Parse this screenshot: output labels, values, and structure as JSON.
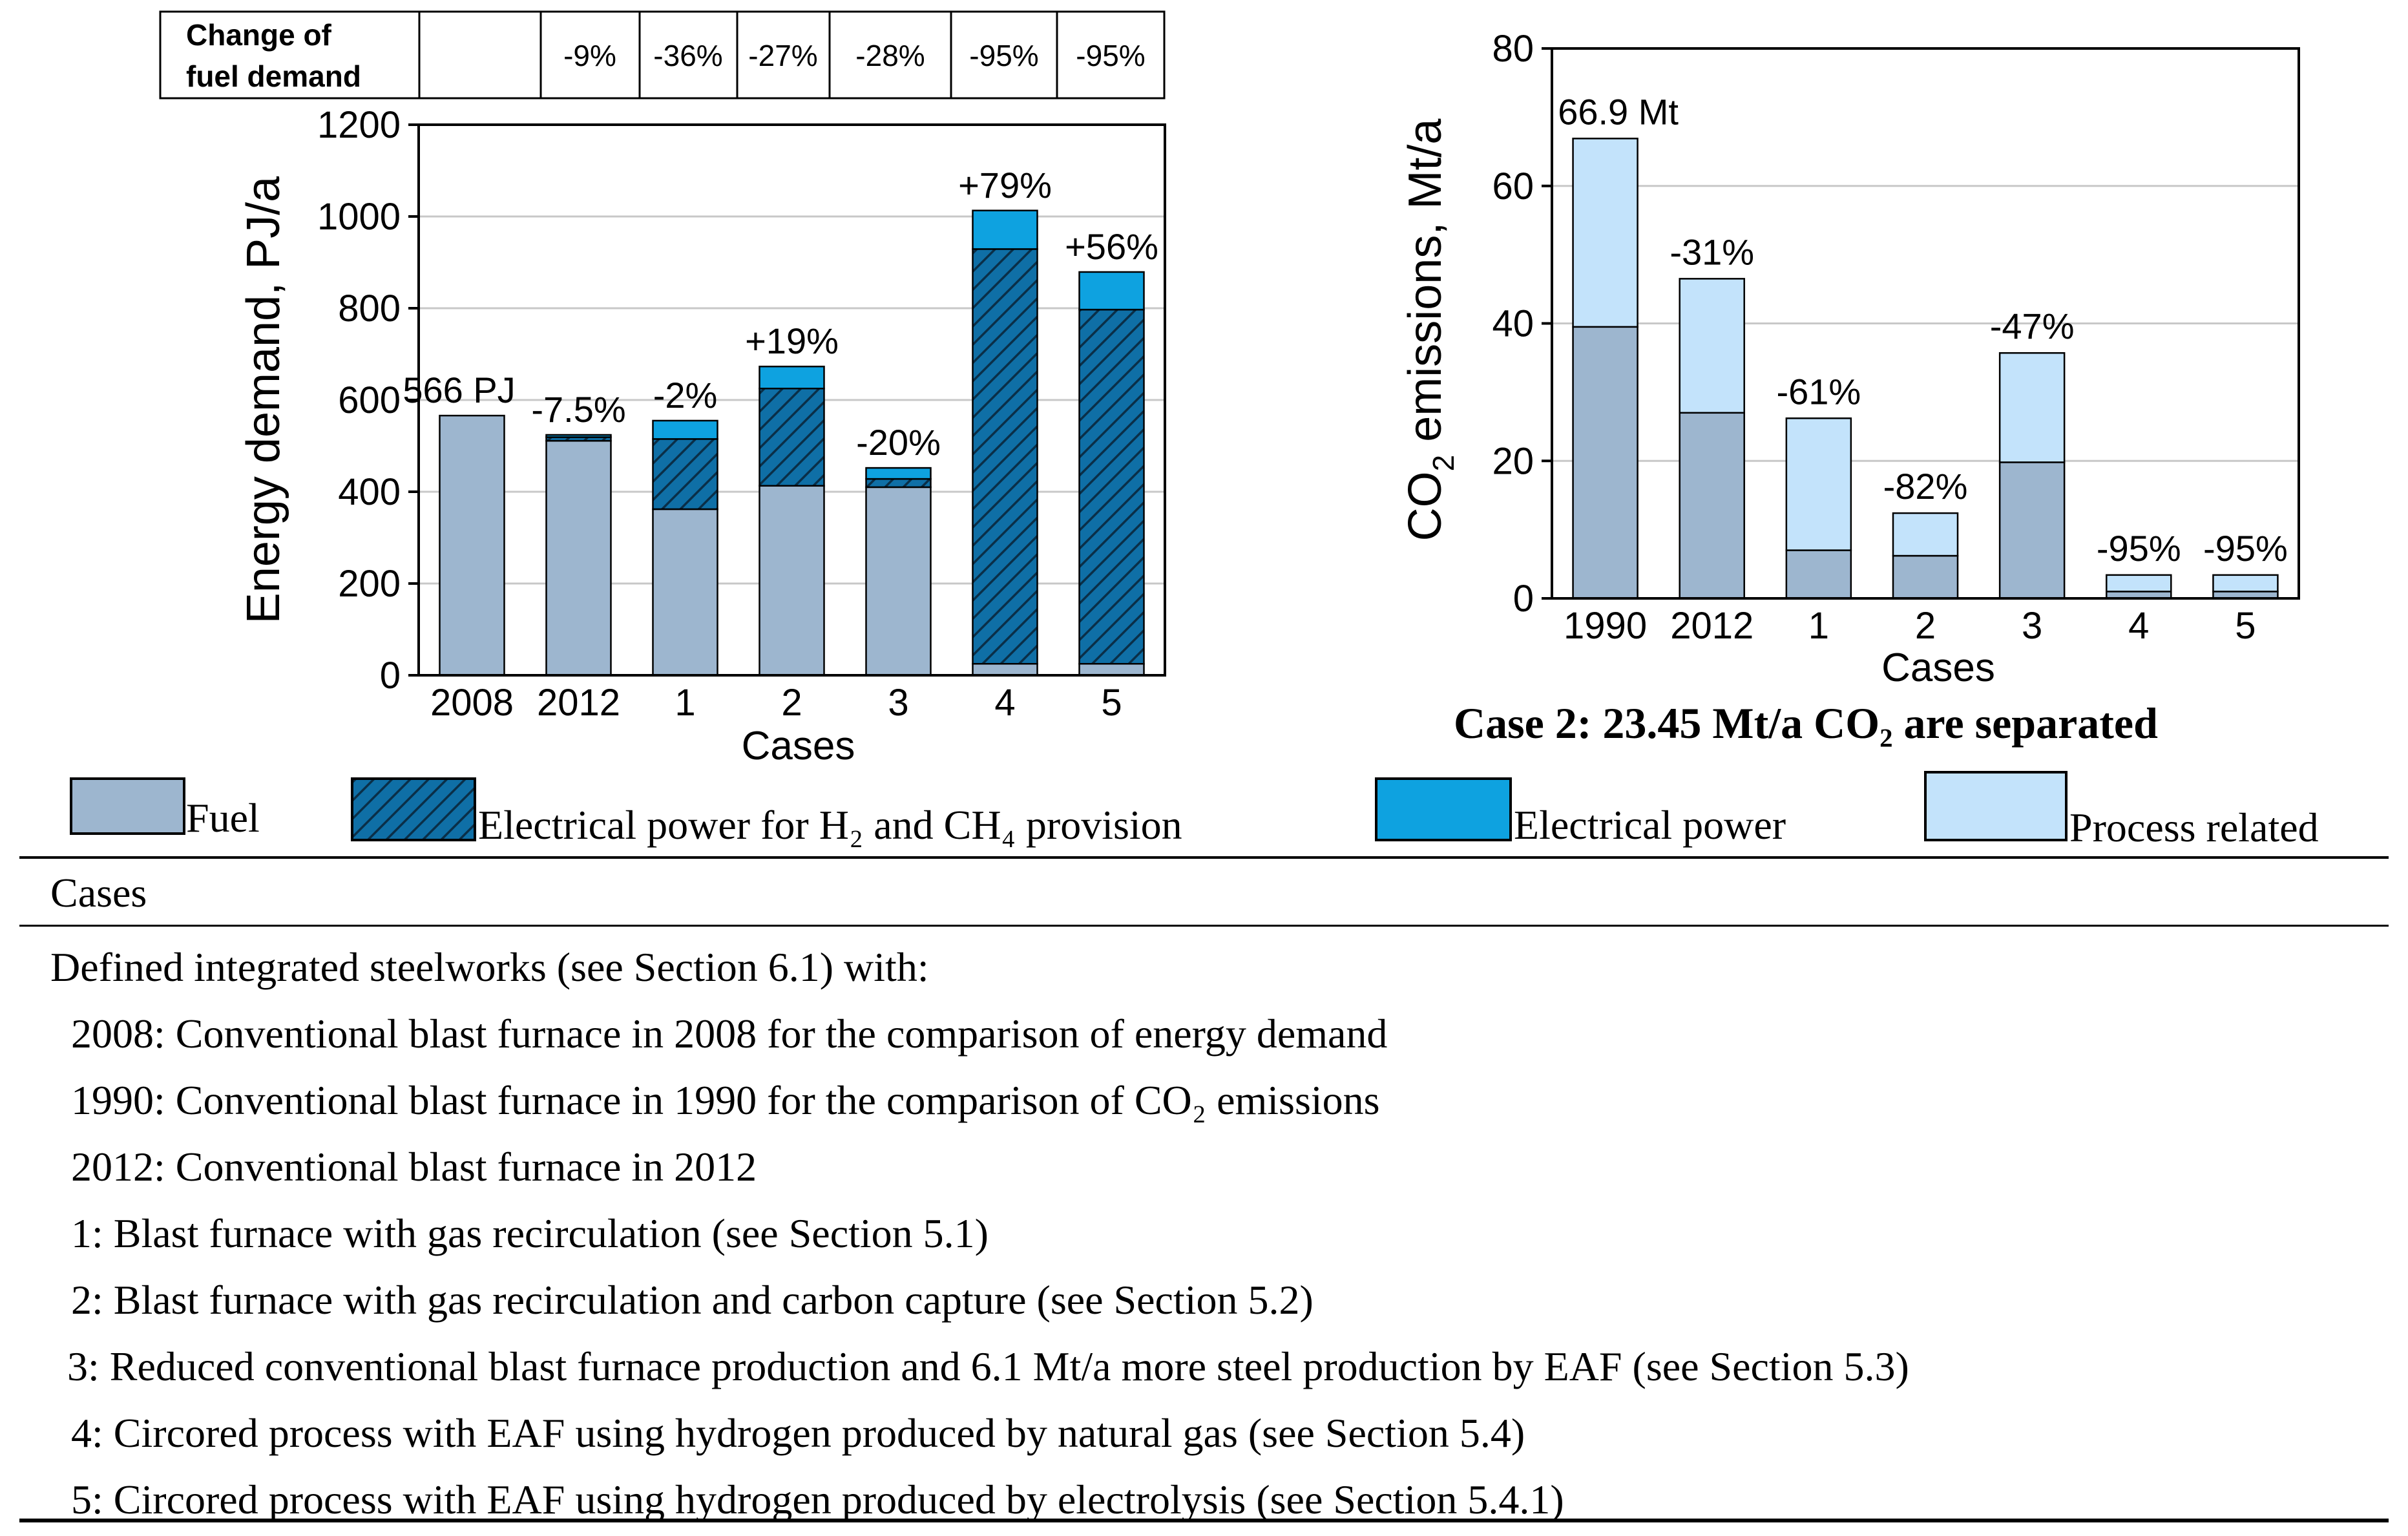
{
  "colors": {
    "fuel": "#9db6cf",
    "electrical_h2": "#0f6fa6",
    "electrical_power": "#0ea2e0",
    "process": "#c3e3fb",
    "axis": "#000000",
    "grid": "#c8c8c8"
  },
  "fuel_change_table": {
    "header": "Change of fuel demand",
    "header_line1": "Change of",
    "header_line2": "fuel demand",
    "cells": [
      "",
      "-9%",
      "-36%",
      "-27%",
      "-28%",
      "-95%",
      "-95%"
    ]
  },
  "legend": {
    "fuel": "Fuel",
    "electrical_h2": "Electrical power for H₂ and CH₄ provision",
    "electrical_power": "Electrical power",
    "process": "Process related"
  },
  "chart_data": [
    {
      "type": "bar",
      "stacked": true,
      "title": "",
      "xlabel": "Cases",
      "ylabel": "Energy demand, PJ/a",
      "ylim": [
        0,
        1200
      ],
      "yticks": [
        0,
        200,
        400,
        600,
        800,
        1000,
        1200
      ],
      "grid": true,
      "categories": [
        "2008",
        "2012",
        "1",
        "2",
        "3",
        "4",
        "5"
      ],
      "series": [
        {
          "name": "Fuel",
          "values": [
            566,
            511,
            362,
            413,
            410,
            25,
            25
          ]
        },
        {
          "name": "Electrical power for H2 and CH4 provision",
          "values": [
            0,
            8,
            153,
            212,
            18,
            904,
            772
          ]
        },
        {
          "name": "Electrical power",
          "values": [
            0,
            5,
            40,
            48,
            24,
            84,
            82
          ]
        }
      ],
      "totals": [
        566,
        524,
        555,
        673,
        452,
        1013,
        879
      ],
      "labels": [
        "566 PJ",
        "-7.5%",
        "-2%",
        "+19%",
        "-20%",
        "+79%",
        "+56%"
      ]
    },
    {
      "type": "bar",
      "stacked": true,
      "title": "Case 2: 23.45 Mt/a CO₂ are separated",
      "xlabel": "Cases",
      "ylabel": "CO2 emissions, Mt/a",
      "ylabel_main": "CO",
      "ylabel_sub": "2",
      "ylabel_rest": " emissions, Mt/a",
      "ylim": [
        0,
        80
      ],
      "yticks": [
        0,
        20,
        40,
        60,
        80
      ],
      "grid": true,
      "categories": [
        "1990",
        "2012",
        "1",
        "2",
        "3",
        "4",
        "5"
      ],
      "series": [
        {
          "name": "Fuel",
          "values": [
            39.5,
            27,
            7,
            6.2,
            19.8,
            1,
            1
          ]
        },
        {
          "name": "Process related",
          "values": [
            27.4,
            19.5,
            19.2,
            6.2,
            15.9,
            2.4,
            2.4
          ]
        }
      ],
      "totals": [
        66.9,
        46.5,
        26.2,
        12.4,
        35.7,
        3.4,
        3.4
      ],
      "labels": [
        "66.9 Mt",
        "-31%",
        "-61%",
        "-82%",
        "-47%",
        "-95%",
        "-95%"
      ]
    }
  ],
  "cases_table": {
    "header": "Cases",
    "intro": "Defined integrated steelworks (see Section 6.1) with:",
    "rows": [
      "2008: Conventional blast furnace in 2008 for the comparison of energy demand",
      "1990: Conventional blast furnace in 1990 for the comparison of CO₂ emissions",
      "2012: Conventional blast furnace in 2012",
      "1: Blast furnace with gas recirculation (see Section 5.1)",
      "2: Blast furnace with gas recirculation and carbon capture (see Section 5.2)",
      "3: Reduced conventional blast furnace production and 6.1 Mt/a more steel production by EAF (see Section 5.3)",
      "4: Circored process with EAF using hydrogen produced by natural gas (see Section 5.4)",
      "5: Circored process with EAF using hydrogen produced by electrolysis (see Section 5.4.1)"
    ]
  }
}
